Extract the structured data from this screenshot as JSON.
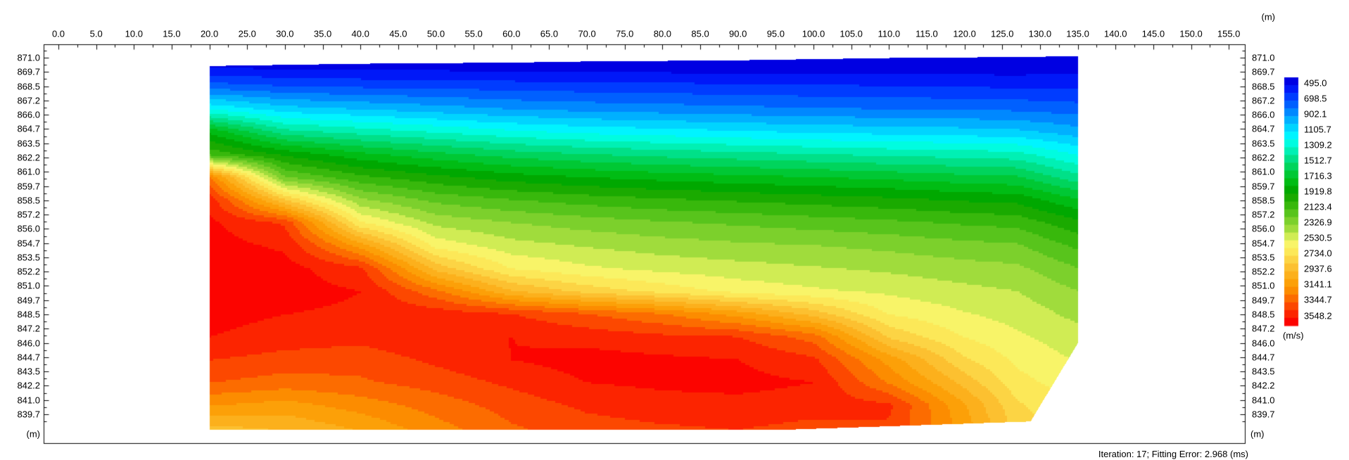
{
  "top_axis": {
    "unit": "(m)",
    "labels": [
      "0.0",
      "5.0",
      "10.0",
      "15.0",
      "20.0",
      "25.0",
      "30.0",
      "35.0",
      "40.0",
      "45.0",
      "50.0",
      "55.0",
      "60.0",
      "65.0",
      "70.0",
      "75.0",
      "80.0",
      "85.0",
      "90.0",
      "95.0",
      "100.0",
      "105.0",
      "110.0",
      "115.0",
      "120.0",
      "125.0",
      "130.0",
      "135.0",
      "140.0",
      "145.0",
      "150.0",
      "155.0"
    ]
  },
  "elevation_axis": {
    "unit": "(m)",
    "labels": [
      "871.0",
      "869.7",
      "868.5",
      "867.2",
      "866.0",
      "864.7",
      "863.5",
      "862.2",
      "861.0",
      "859.7",
      "858.5",
      "857.2",
      "856.0",
      "854.7",
      "853.5",
      "852.2",
      "851.0",
      "849.7",
      "848.5",
      "847.2",
      "846.0",
      "844.7",
      "843.5",
      "842.2",
      "841.0",
      "839.7"
    ]
  },
  "legend": {
    "unit": "(m/s)",
    "tick_labels": [
      "495.0",
      "698.5",
      "902.1",
      "1105.7",
      "1309.2",
      "1512.7",
      "1716.3",
      "1919.8",
      "2123.4",
      "2326.9",
      "2530.5",
      "2734.0",
      "2937.6",
      "3141.1",
      "3344.7",
      "3548.2"
    ],
    "colors": [
      "#0000E2",
      "#0018F8",
      "#003CFF",
      "#0060FF",
      "#0088FF",
      "#00B0FF",
      "#00D4FF",
      "#00F4FF",
      "#00FCE0",
      "#00F0B4",
      "#00E088",
      "#00D45C",
      "#00C834",
      "#00BC14",
      "#00A800",
      "#1AAA00",
      "#38B80C",
      "#58C41C",
      "#7CD02C",
      "#A0DC3C",
      "#D0EC54",
      "#F8F468",
      "#FCE858",
      "#FCD444",
      "#FCC030",
      "#FCB01C",
      "#FCA008",
      "#FC8C00",
      "#FC6C00",
      "#FC4800",
      "#FC2400",
      "#FC0400"
    ]
  },
  "status": {
    "text": "Iteration: 17; Fitting Error: 2.968 (ms)"
  },
  "chart_data": {
    "type": "heatmap",
    "title": "Seismic refraction tomography velocity cross-section",
    "xlabel": "(m)",
    "ylabel": "(m)",
    "zlabel": "(m/s)",
    "x_range": [
      0,
      155
    ],
    "x_tick_step": 5,
    "elevation_range": [
      839.7,
      871.0
    ],
    "grid_lines": "off",
    "legend_position": "right",
    "velocity_scale": {
      "min": 495.0,
      "max": 3548.2,
      "label_step": 203.55,
      "labels": 16,
      "color_segments": 32
    },
    "iteration": 17,
    "fitting_error_ms": 2.968,
    "section": {
      "x_min": 20,
      "x_max": 135,
      "surface_profile": [
        [
          20,
          870.3
        ],
        [
          30,
          870.4
        ],
        [
          40,
          870.5
        ],
        [
          50,
          870.55
        ],
        [
          60,
          870.6
        ],
        [
          70,
          870.7
        ],
        [
          80,
          870.75
        ],
        [
          90,
          870.8
        ],
        [
          100,
          870.9
        ],
        [
          110,
          871.0
        ],
        [
          120,
          871.05
        ],
        [
          127,
          871.1
        ],
        [
          135,
          871.15
        ]
      ],
      "bottom_profile": [
        [
          20,
          838.35
        ],
        [
          95,
          838.35
        ],
        [
          128.7,
          839.1
        ],
        [
          135,
          846.0
        ]
      ]
    },
    "grid": {
      "x": [
        20,
        30,
        40,
        50,
        60,
        70,
        80,
        90,
        100,
        110,
        120,
        127,
        135
      ],
      "elevation": [
        871.3,
        870.0,
        868.5,
        866.5,
        864.5,
        862.5,
        860.5,
        858.5,
        856.5,
        854.5,
        852.5,
        850.5,
        848.5,
        846.5,
        844.5,
        842.5,
        840.5,
        838.4
      ],
      "velocity_ms": [
        [
          480,
          480,
          480,
          480,
          480,
          480,
          480,
          480,
          480,
          480,
          480,
          490,
          500
        ],
        [
          560,
          540,
          530,
          530,
          520,
          510,
          510,
          500,
          500,
          500,
          500,
          500,
          520
        ],
        [
          800,
          750,
          730,
          720,
          700,
          690,
          680,
          670,
          660,
          650,
          640,
          630,
          620
        ],
        [
          1250,
          1100,
          1050,
          1000,
          950,
          920,
          900,
          880,
          860,
          850,
          840,
          830,
          800
        ],
        [
          1850,
          1500,
          1420,
          1350,
          1280,
          1230,
          1200,
          1170,
          1140,
          1120,
          1100,
          1080,
          1000
        ],
        [
          2150,
          1950,
          1800,
          1700,
          1620,
          1570,
          1530,
          1500,
          1470,
          1440,
          1420,
          1400,
          1250
        ],
        [
          3300,
          2280,
          2100,
          2000,
          1920,
          1870,
          1830,
          1800,
          1770,
          1740,
          1700,
          1680,
          1500
        ],
        [
          3560,
          2900,
          2400,
          2250,
          2180,
          2130,
          2090,
          2060,
          2030,
          2000,
          1960,
          1940,
          1780
        ],
        [
          3620,
          3480,
          2700,
          2450,
          2380,
          2330,
          2290,
          2260,
          2230,
          2200,
          2160,
          2140,
          2000
        ],
        [
          3640,
          3580,
          3150,
          2650,
          2520,
          2470,
          2430,
          2400,
          2380,
          2350,
          2310,
          2290,
          2150
        ],
        [
          3660,
          3640,
          3520,
          2950,
          2680,
          2600,
          2550,
          2520,
          2490,
          2460,
          2420,
          2400,
          2280
        ],
        [
          3660,
          3640,
          3600,
          3320,
          3000,
          2850,
          2750,
          2650,
          2600,
          2560,
          2510,
          2480,
          2380
        ],
        [
          3640,
          3600,
          3580,
          3560,
          3500,
          3400,
          3300,
          3150,
          2950,
          2680,
          2590,
          2540,
          2450
        ],
        [
          3600,
          3550,
          3530,
          3580,
          3600,
          3560,
          3520,
          3500,
          3350,
          2870,
          2680,
          2600,
          2520
        ],
        [
          3500,
          3460,
          3440,
          3520,
          3600,
          3640,
          3620,
          3600,
          3520,
          3150,
          2800,
          2660,
          2570
        ],
        [
          3400,
          3350,
          3380,
          3440,
          3520,
          3600,
          3620,
          3630,
          3600,
          3280,
          2950,
          2720,
          2620
        ],
        [
          3200,
          3150,
          3240,
          3340,
          3440,
          3520,
          3560,
          3570,
          3550,
          3520,
          3100,
          2800,
          2680
        ],
        [
          2950,
          3000,
          3100,
          3250,
          3380,
          3450,
          3480,
          3500,
          3460,
          3480,
          3150,
          2850,
          2720
        ]
      ]
    }
  }
}
